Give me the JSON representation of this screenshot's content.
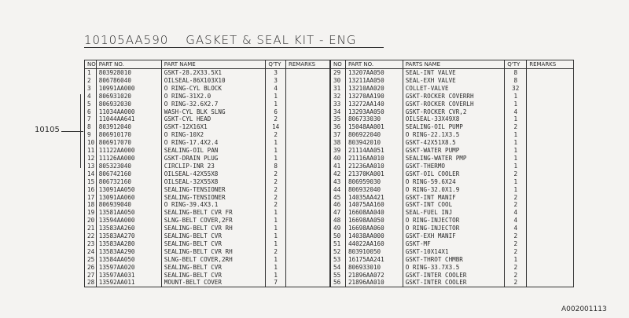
{
  "header": {
    "part_number": "10105AA590",
    "title": "GASKET & SEAL KIT - ENG"
  },
  "assembly_ref": "10105",
  "doc_id": "A002001113",
  "left_table": {
    "columns": [
      "NO",
      "PART NO.",
      "PART NAME",
      "Q'TY",
      "REMARKS"
    ],
    "rows": [
      [
        "1",
        "803928010",
        "GSKT-28.2X33.5X1",
        "3",
        ""
      ],
      [
        "2",
        "806786040",
        "OILSEAL-86X103X10",
        "3",
        ""
      ],
      [
        "3",
        "10991AA000",
        "O RING-CYL BLOCK",
        "4",
        ""
      ],
      [
        "4",
        "806931020",
        "O RING-31X2.0",
        "1",
        ""
      ],
      [
        "5",
        "806932030",
        "O RING-32.6X2.7",
        "1",
        ""
      ],
      [
        "6",
        "11034AA000",
        "WASH-CYL BLK SLNG",
        "6",
        ""
      ],
      [
        "7",
        "11044AA641",
        "GSKT-CYL HEAD",
        "2",
        ""
      ],
      [
        "8",
        "803912040",
        "GSKT-12X16X1",
        "14",
        ""
      ],
      [
        "9",
        "806910170",
        "O RING-10X2",
        "2",
        ""
      ],
      [
        "10",
        "806917070",
        "O RING-17.4X2.4",
        "1",
        ""
      ],
      [
        "11",
        "11122AA000",
        "SEALING-OIL PAN",
        "1",
        ""
      ],
      [
        "12",
        "11126AA000",
        "GSKT-DRAIN PLUG",
        "1",
        ""
      ],
      [
        "13",
        "805323040",
        "CIRCLIP-INR 23",
        "8",
        ""
      ],
      [
        "14",
        "806742160",
        "OILSEAL-42X55X8",
        "2",
        ""
      ],
      [
        "15",
        "806732160",
        "OILSEAL-32X55X8",
        "2",
        ""
      ],
      [
        "16",
        "13091AA050",
        "SEALING-TENSIONER",
        "2",
        ""
      ],
      [
        "17",
        "13091AA060",
        "SEALING-TENSIONER",
        "2",
        ""
      ],
      [
        "18",
        "806939040",
        "O RING-39.4X3.1",
        "2",
        ""
      ],
      [
        "19",
        "13581AA050",
        "SEALING-BELT CVR FR",
        "1",
        ""
      ],
      [
        "20",
        "13594AA000",
        "SLNG-BELT COVER,2FR",
        "1",
        ""
      ],
      [
        "21",
        "13583AA260",
        "SEALING-BELT CVR RH",
        "1",
        ""
      ],
      [
        "22",
        "13583AA270",
        "SEALING-BELT CVR",
        "1",
        ""
      ],
      [
        "23",
        "13583AA280",
        "SEALING-BELT CVR",
        "1",
        ""
      ],
      [
        "24",
        "13583AA290",
        "SEALING-BELT CVR RH",
        "2",
        ""
      ],
      [
        "25",
        "13584AA050",
        "SLNG-BELT COVER,2RH",
        "1",
        ""
      ],
      [
        "26",
        "13597AA020",
        "SEALING-BELT CVR",
        "1",
        ""
      ],
      [
        "27",
        "13597AA031",
        "SEALING-BELT CVR",
        "1",
        ""
      ],
      [
        "28",
        "13592AA011",
        "MOUNT-BELT COVER",
        "7",
        ""
      ]
    ]
  },
  "right_table": {
    "columns": [
      "NO",
      "PART NO.",
      "PARTS NAME",
      "Q'TY",
      "REMARKS"
    ],
    "rows": [
      [
        "29",
        "13207AA050",
        "SEAL-INT VALVE",
        "8",
        ""
      ],
      [
        "30",
        "13211AA050",
        "SEAL-EXH VALVE",
        "8",
        ""
      ],
      [
        "31",
        "13210AA020",
        "COLLET-VALVE",
        "32",
        ""
      ],
      [
        "32",
        "13270AA190",
        "GSKT-ROCKER COVERRH",
        "1",
        ""
      ],
      [
        "33",
        "13272AA140",
        "GSKT-ROCKER COVERLH",
        "1",
        ""
      ],
      [
        "34",
        "13293AA050",
        "GSKT-ROCKER CVR,2",
        "4",
        ""
      ],
      [
        "35",
        "806733030",
        "OILSEAL-33X49X8",
        "1",
        ""
      ],
      [
        "36",
        "15048AA001",
        "SEALING-OIL PUMP",
        "2",
        ""
      ],
      [
        "37",
        "806922040",
        "O RING-22.1X3.5",
        "1",
        ""
      ],
      [
        "38",
        "803942010",
        "GSKT-42X51X8.5",
        "1",
        ""
      ],
      [
        "39",
        "21114AA051",
        "GSKT-WATER PUMP",
        "1",
        ""
      ],
      [
        "40",
        "21116AA010",
        "SEALING-WATER PMP",
        "1",
        ""
      ],
      [
        "41",
        "21236AA010",
        "GSKT-THERMO",
        "1",
        ""
      ],
      [
        "42",
        "21370KA001",
        "GSKT-OIL COOLER",
        "2",
        ""
      ],
      [
        "43",
        "806959030",
        "O RING-59.6X24",
        "1",
        ""
      ],
      [
        "44",
        "806932040",
        "O RING-32.0X1.9",
        "1",
        ""
      ],
      [
        "45",
        "14035AA421",
        "GSKT-INT MANIF",
        "2",
        ""
      ],
      [
        "46",
        "14075AA160",
        "GSKT-INT COOL",
        "2",
        ""
      ],
      [
        "47",
        "16608AA040",
        "SEAL-FUEL INJ",
        "4",
        ""
      ],
      [
        "48",
        "16698AA050",
        "O RING-INJECTOR",
        "4",
        ""
      ],
      [
        "49",
        "16698AA060",
        "O RING-INJECTOR",
        "4",
        ""
      ],
      [
        "50",
        "14038AA000",
        "GSKT-EXH MANIF",
        "2",
        ""
      ],
      [
        "51",
        "44022AA160",
        "GSKT-MF",
        "2",
        ""
      ],
      [
        "52",
        "803910050",
        "GSKT-10X14X1",
        "2",
        ""
      ],
      [
        "53",
        "16175AA241",
        "GSKT-THROT CHMBR",
        "1",
        ""
      ],
      [
        "54",
        "806933010",
        "O RING-33.7X3.5",
        "2",
        ""
      ],
      [
        "55",
        "21896AA072",
        "GSKT-INTER COOLER",
        "2",
        ""
      ],
      [
        "56",
        "21896AA010",
        "GSKT-INTER COOLER",
        "2",
        ""
      ]
    ]
  }
}
